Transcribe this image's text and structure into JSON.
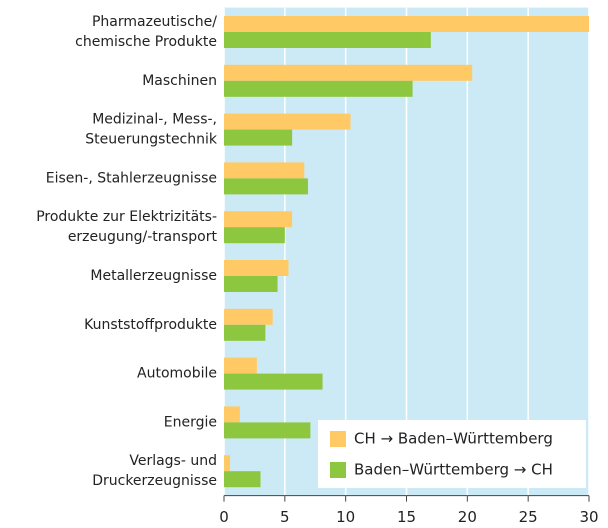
{
  "chart_data": {
    "type": "barh",
    "categories": [
      [
        "Pharmazeutische/",
        "chemische Produkte"
      ],
      [
        "Maschinen"
      ],
      [
        "Medizinal-, Mess-,",
        "Steuerungstechnik"
      ],
      [
        "Eisen-, Stahlerzeugnisse"
      ],
      [
        "Produkte zur Elektrizitäts-",
        "erzeugung/-transport"
      ],
      [
        "Metallerzeugnisse"
      ],
      [
        "Kunststoffprodukte"
      ],
      [
        "Automobile"
      ],
      [
        "Energie"
      ],
      [
        "Verlags- und",
        "Druckerzeugnisse"
      ]
    ],
    "series": [
      {
        "name": "CH → Baden–Württemberg",
        "color": "#ffc966",
        "values": [
          30,
          20.4,
          10.4,
          6.6,
          5.6,
          5.3,
          4.0,
          2.7,
          1.3,
          0.5
        ]
      },
      {
        "name": "Baden–Württemberg → CH",
        "color": "#8dc63f",
        "values": [
          17.0,
          15.5,
          5.6,
          6.9,
          5.0,
          4.4,
          3.4,
          8.1,
          7.1,
          3.0
        ]
      }
    ],
    "xlim": [
      0,
      30
    ],
    "xticks": [
      0,
      5,
      10,
      15,
      20,
      25,
      30
    ],
    "grid": true,
    "legend": "lower right"
  }
}
